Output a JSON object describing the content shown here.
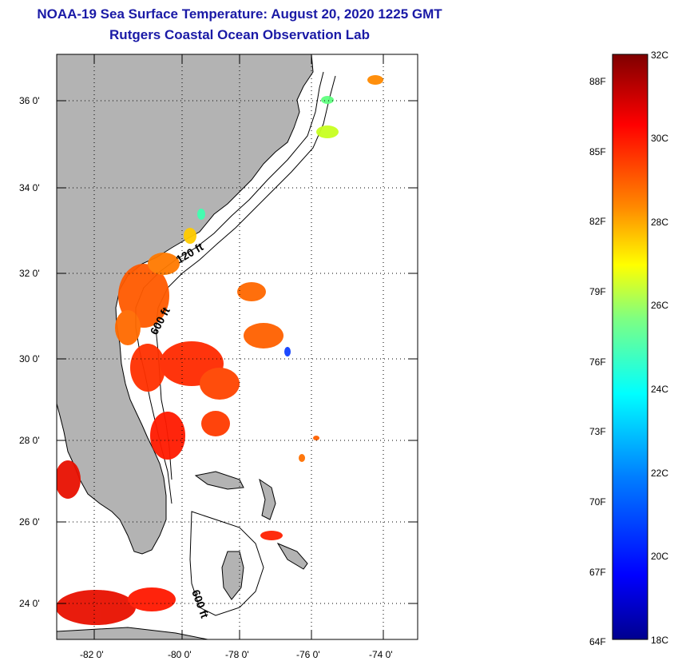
{
  "header": {
    "title": "NOAA-19 Sea Surface Temperature:  August 20, 2020 1225 GMT",
    "subtitle": "Rutgers Coastal Ocean Observation Lab"
  },
  "map": {
    "lat_labels": [
      "36 0'",
      "34 0'",
      "32 0'",
      "30 0'",
      "28 0'",
      "26 0'",
      "24 0'"
    ],
    "lon_labels": [
      "-82 0'",
      "-80 0'",
      "-78 0'",
      "-76 0'",
      "-74 0'"
    ],
    "depth_labels": [
      "120 ft",
      "600 ft",
      "600 ft"
    ],
    "land_color": "#b3b3b3"
  },
  "colorbar": {
    "celsius_labels": [
      "32C",
      "30C",
      "28C",
      "26C",
      "24C",
      "22C",
      "20C",
      "18C"
    ],
    "fahrenheit_labels": [
      "88F",
      "85F",
      "82F",
      "79F",
      "76F",
      "73F",
      "70F",
      "67F",
      "64F"
    ],
    "colors": [
      "#7f0000",
      "#ff0000",
      "#ff8800",
      "#ffff00",
      "#80ff80",
      "#00ffff",
      "#0080ff",
      "#0000ff",
      "#00008f"
    ]
  }
}
